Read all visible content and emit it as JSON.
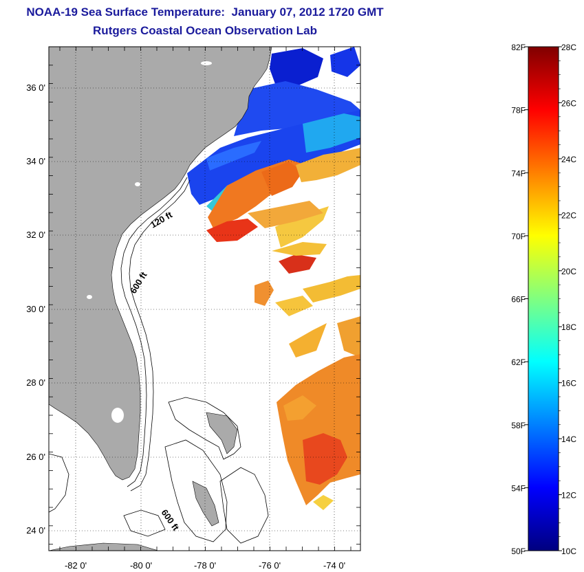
{
  "title": {
    "line1": "NOAA-19 Sea Surface Temperature:  January 07, 2012 1720 GMT",
    "line2": "Rutgers Coastal Ocean Observation Lab"
  },
  "map": {
    "latitude_labels": [
      "36 0'",
      "34 0'",
      "32 0'",
      "30 0'",
      "28 0'",
      "26 0'",
      "24 0'"
    ],
    "longitude_labels": [
      "-82 0'",
      "-80 0'",
      "-78 0'",
      "-76 0'",
      "-74 0'"
    ],
    "contours": [
      {
        "label": "120 ft"
      },
      {
        "label": "600 ft"
      },
      {
        "label": "600 ft"
      }
    ],
    "land_color": "#aaaaaa",
    "grid": "dotted"
  },
  "colorbar": {
    "fahrenheit_labels": [
      "82F",
      "78F",
      "74F",
      "70F",
      "66F",
      "62F",
      "58F",
      "54F",
      "50F"
    ],
    "celsius_labels": [
      "28C",
      "26C",
      "24C",
      "22C",
      "20C",
      "18C",
      "16C",
      "14C",
      "12C",
      "10C"
    ],
    "min_c": 10,
    "max_c": 28,
    "colors": [
      "#00007f",
      "#0000ff",
      "#0080ff",
      "#00ffff",
      "#80ff80",
      "#ffff00",
      "#ff8000",
      "#ff0000",
      "#800000"
    ]
  }
}
